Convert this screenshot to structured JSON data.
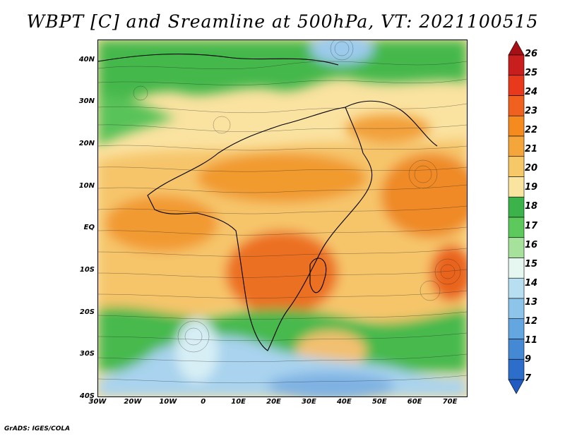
{
  "title": "WBPT [C] and Sreamline at 500hPa, VT: 2021100515",
  "credit": "GrADS: IGES/COLA",
  "map": {
    "lat_labels": [
      "40N",
      "30N",
      "20N",
      "10N",
      "EQ",
      "10S",
      "20S",
      "30S",
      "40S"
    ],
    "lat_values": [
      40,
      30,
      20,
      10,
      0,
      -10,
      -20,
      -30,
      -40
    ],
    "lon_labels": [
      "30W",
      "20W",
      "10W",
      "0",
      "10E",
      "20E",
      "30E",
      "40E",
      "50E",
      "60E",
      "70E"
    ],
    "lon_values": [
      -30,
      -20,
      -10,
      0,
      10,
      20,
      30,
      40,
      50,
      60,
      70
    ],
    "lon_range": [
      -30,
      75
    ],
    "lat_range": [
      -40,
      45
    ]
  },
  "colorbar": {
    "labels": [
      "26",
      "25",
      "24",
      "23",
      "22",
      "21",
      "20",
      "19",
      "18",
      "17",
      "16",
      "15",
      "14",
      "13",
      "12",
      "11",
      "9",
      "7"
    ],
    "colors": [
      "#a50f15",
      "#c81e1e",
      "#e8391d",
      "#f0601e",
      "#f58a1f",
      "#f5a63a",
      "#f7c868",
      "#fae4a0",
      "#3cb34a",
      "#5dc85c",
      "#a6e29b",
      "#e6f7f2",
      "#b8def2",
      "#8cc4ea",
      "#64a6e0",
      "#4589d4",
      "#2d6ecb",
      "#1f5bc2"
    ]
  },
  "colors": {
    "green": "#44b94c",
    "light_green": "#9fdc8e",
    "yellow": "#fbe4a3",
    "tan": "#f6c46c",
    "orange": "#f49a2b",
    "dark_orange": "#ec6a20",
    "light_blue": "#b6daf0",
    "blue": "#7fb6e6"
  }
}
